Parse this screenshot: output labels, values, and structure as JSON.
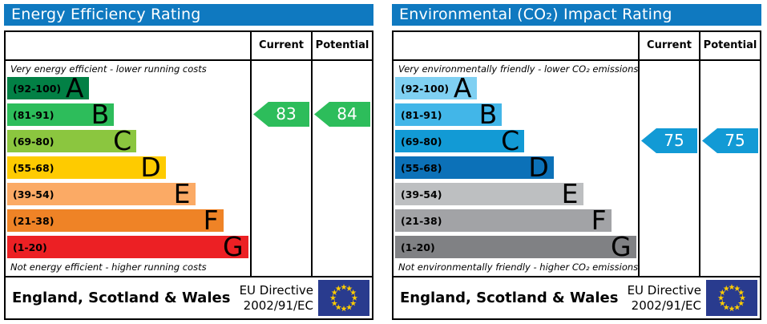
{
  "chart_data": [
    {
      "type": "bar",
      "title": "Energy Efficiency Rating",
      "categories": [
        "A (92-100)",
        "B (81-91)",
        "C (69-80)",
        "D (55-68)",
        "E (39-54)",
        "F (21-38)",
        "G (1-20)"
      ],
      "series": [
        {
          "name": "Current",
          "values": [
            83
          ],
          "band": "B"
        },
        {
          "name": "Potential",
          "values": [
            84
          ],
          "band": "B"
        }
      ],
      "ylim": [
        1,
        100
      ],
      "annotations": [
        "Very energy efficient - lower running costs",
        "Not energy efficient - higher running costs",
        "England, Scotland & Wales",
        "EU Directive 2002/91/EC"
      ],
      "legend_position": "top-right-columns"
    },
    {
      "type": "bar",
      "title": "Environmental (CO₂) Impact Rating",
      "categories": [
        "A (92-100)",
        "B (81-91)",
        "C (69-80)",
        "D (55-68)",
        "E (39-54)",
        "F (21-38)",
        "G (1-20)"
      ],
      "series": [
        {
          "name": "Current",
          "values": [
            75
          ],
          "band": "C"
        },
        {
          "name": "Potential",
          "values": [
            75
          ],
          "band": "C"
        }
      ],
      "ylim": [
        1,
        100
      ],
      "annotations": [
        "Very environmentally friendly - lower CO₂ emissions",
        "Not environmentally friendly - higher CO₂ emissions",
        "England, Scotland & Wales",
        "EU Directive 2002/91/EC"
      ],
      "legend_position": "top-right-columns"
    }
  ],
  "panels": [
    {
      "title": "Energy Efficiency Rating",
      "columns": {
        "current": "Current",
        "potential": "Potential"
      },
      "top_caption": "Very energy efficient - lower running costs",
      "bottom_caption": "Not energy efficient - higher running costs",
      "bands": [
        {
          "range": "(92-100)",
          "letter": "A",
          "color": "#028045",
          "width_pct": 33.5
        },
        {
          "range": "(81-91)",
          "letter": "B",
          "color": "#2dbd5b",
          "width_pct": 44
        },
        {
          "range": "(69-80)",
          "letter": "C",
          "color": "#8bc63f",
          "width_pct": 53.2
        },
        {
          "range": "(55-68)",
          "letter": "D",
          "color": "#fecb00",
          "width_pct": 65.3
        },
        {
          "range": "(39-54)",
          "letter": "E",
          "color": "#fbaa65",
          "width_pct": 77.4
        },
        {
          "range": "(21-38)",
          "letter": "F",
          "color": "#ef8326",
          "width_pct": 89
        },
        {
          "range": "(1-20)",
          "letter": "G",
          "color": "#ec2024",
          "width_pct": 99.2
        }
      ],
      "current": {
        "value": "83",
        "color": "#2dbd5b",
        "band_index": 1
      },
      "potential": {
        "value": "84",
        "color": "#2dbd5b",
        "band_index": 1
      },
      "footer": {
        "region": "England, Scotland & Wales",
        "directive_line1": "EU Directive",
        "directive_line2": "2002/91/EC"
      }
    },
    {
      "title": "Environmental (CO₂) Impact Rating",
      "columns": {
        "current": "Current",
        "potential": "Potential"
      },
      "top_caption": "Very environmentally friendly - lower CO₂ emissions",
      "bottom_caption": "Not environmentally friendly - higher CO₂ emissions",
      "bands": [
        {
          "range": "(92-100)",
          "letter": "A",
          "color": "#7fd0f2",
          "width_pct": 33.5
        },
        {
          "range": "(81-91)",
          "letter": "B",
          "color": "#42b6e8",
          "width_pct": 44
        },
        {
          "range": "(69-80)",
          "letter": "C",
          "color": "#129ad5",
          "width_pct": 53.2
        },
        {
          "range": "(55-68)",
          "letter": "D",
          "color": "#0c71b8",
          "width_pct": 65.3
        },
        {
          "range": "(39-54)",
          "letter": "E",
          "color": "#bdbfc1",
          "width_pct": 77.4
        },
        {
          "range": "(21-38)",
          "letter": "F",
          "color": "#a2a3a6",
          "width_pct": 89
        },
        {
          "range": "(1-20)",
          "letter": "G",
          "color": "#808184",
          "width_pct": 99.2
        }
      ],
      "current": {
        "value": "75",
        "color": "#129ad5",
        "band_index": 2
      },
      "potential": {
        "value": "75",
        "color": "#129ad5",
        "band_index": 2
      },
      "footer": {
        "region": "England, Scotland & Wales",
        "directive_line1": "EU Directive",
        "directive_line2": "2002/91/EC"
      }
    }
  ],
  "colors": {
    "header_bar": "#0f79c0",
    "current_arrow_energy": "#2dbd5b",
    "current_arrow_co2": "#129ad5",
    "eu_flag_blue": "#293b8e",
    "eu_flag_stars": "#ffcc00"
  }
}
